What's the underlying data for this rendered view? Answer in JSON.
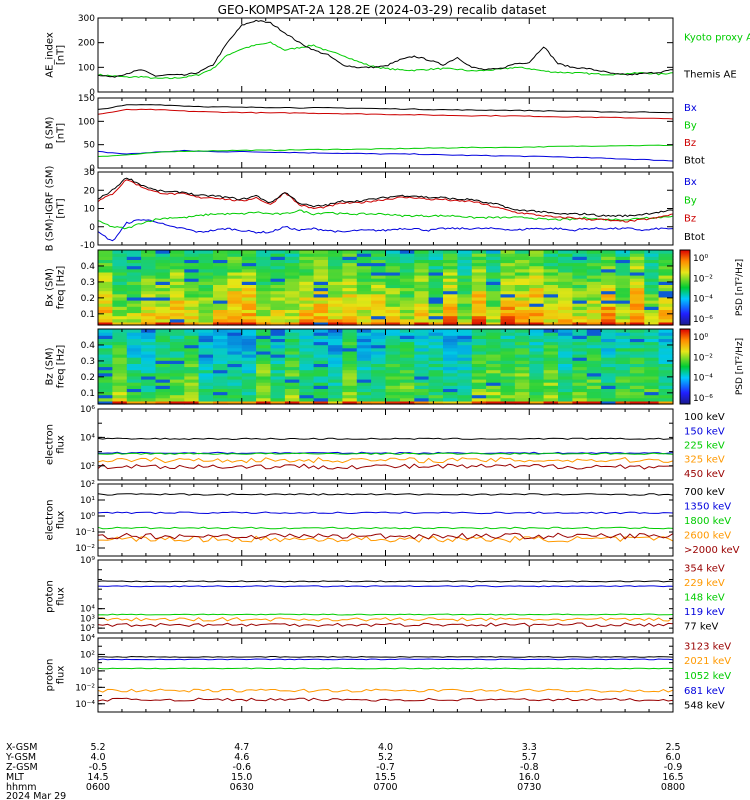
{
  "title": "GEO-KOMPSAT-2A 128.2E (2024-03-29) recalib dataset",
  "colors": {
    "black": "#000000",
    "blue": "#0000dd",
    "green": "#00cc00",
    "red": "#cc0000",
    "orange": "#ff9900",
    "darkred": "#990000"
  },
  "x_time_labels": [
    "0600",
    "0630",
    "0700",
    "0730",
    "0800"
  ],
  "bottom_table": {
    "row_labels": [
      "X-GSM",
      "Y-GSM",
      "Z-GSM",
      "MLT",
      "hhmm",
      "2024 Mar 29"
    ],
    "columns": [
      {
        "values": [
          "5.2",
          "4.0",
          "-0.5",
          "14.5",
          "0600"
        ]
      },
      {
        "values": [
          "4.7",
          "4.6",
          "-0.6",
          "15.0",
          "0630"
        ]
      },
      {
        "values": [
          "4.0",
          "5.2",
          "-0.7",
          "15.5",
          "0700"
        ]
      },
      {
        "values": [
          "3.3",
          "5.7",
          "-0.8",
          "16.0",
          "0730"
        ]
      },
      {
        "values": [
          "2.5",
          "6.0",
          "-0.9",
          "16.5",
          "0800"
        ]
      }
    ]
  },
  "chart_data": [
    {
      "id": "ae",
      "type": "line",
      "ylabel": [
        "AE_index",
        "[nT]"
      ],
      "ylim": [
        0,
        300
      ],
      "yticks": [
        {
          "v": 0,
          "label": "0"
        },
        {
          "v": 100,
          "label": "100"
        },
        {
          "v": 200,
          "label": "200"
        },
        {
          "v": 300,
          "label": "300"
        }
      ],
      "x_hours": [
        6.0,
        6.05,
        6.1,
        6.15,
        6.2,
        6.25,
        6.3,
        6.35,
        6.4,
        6.45,
        6.5,
        6.55,
        6.6,
        6.65,
        6.7,
        6.75,
        6.8,
        6.85,
        6.9,
        6.95,
        7.0,
        7.05,
        7.1,
        7.15,
        7.2,
        7.25,
        7.3,
        7.35,
        7.4,
        7.45,
        7.5,
        7.55,
        7.6,
        7.65,
        7.7,
        7.75,
        7.8,
        7.85,
        7.9,
        7.95,
        8.0
      ],
      "series": [
        {
          "name": "Kyoto proxy AE",
          "color": "green",
          "values": [
            70,
            65,
            60,
            62,
            55,
            55,
            60,
            70,
            95,
            150,
            175,
            190,
            200,
            170,
            180,
            190,
            165,
            150,
            125,
            105,
            95,
            90,
            88,
            92,
            95,
            92,
            85,
            88,
            92,
            100,
            95,
            85,
            80,
            78,
            75,
            72,
            72,
            75,
            78,
            72,
            78
          ]
        },
        {
          "name": "Themis AE",
          "color": "black",
          "values": [
            70,
            60,
            75,
            90,
            65,
            70,
            68,
            80,
            110,
            200,
            270,
            290,
            280,
            240,
            200,
            170,
            150,
            110,
            100,
            100,
            105,
            130,
            145,
            130,
            110,
            140,
            100,
            90,
            95,
            115,
            120,
            185,
            115,
            100,
            95,
            85,
            72,
            70,
            75,
            80,
            90
          ]
        }
      ]
    },
    {
      "id": "bsm",
      "type": "line",
      "ylabel": [
        "B (SM)",
        "[nT]"
      ],
      "ylim": [
        0,
        150
      ],
      "yticks": [
        {
          "v": 0,
          "label": "0"
        },
        {
          "v": 50,
          "label": "50"
        },
        {
          "v": 100,
          "label": "100"
        },
        {
          "v": 150,
          "label": "150"
        }
      ],
      "x_hours": [
        6.0,
        6.1,
        6.2,
        6.3,
        6.4,
        6.5,
        6.6,
        6.7,
        6.8,
        6.9,
        7.0,
        7.1,
        7.2,
        7.3,
        7.4,
        7.5,
        7.6,
        7.7,
        7.8,
        7.9,
        8.0
      ],
      "series": [
        {
          "name": "Bx",
          "color": "blue",
          "values": [
            35,
            30,
            34,
            37,
            35,
            35,
            34,
            33,
            32,
            31,
            30,
            30,
            28,
            27,
            26,
            25,
            24,
            22,
            20,
            18,
            15
          ]
        },
        {
          "name": "By",
          "color": "green",
          "values": [
            25,
            28,
            33,
            36,
            37,
            38,
            38,
            39,
            40,
            40,
            41,
            42,
            43,
            44,
            44,
            45,
            46,
            47,
            48,
            48,
            49
          ]
        },
        {
          "name": "Bz",
          "color": "red",
          "values": [
            115,
            125,
            125,
            122,
            120,
            119,
            118,
            118,
            117,
            116,
            115,
            114,
            113,
            112,
            112,
            111,
            110,
            109,
            108,
            107,
            105
          ]
        },
        {
          "name": "Btot",
          "color": "black",
          "values": [
            125,
            135,
            136,
            133,
            131,
            130,
            130,
            129,
            129,
            128,
            127,
            126,
            125,
            124,
            124,
            123,
            122,
            121,
            120,
            120,
            119
          ]
        }
      ]
    },
    {
      "id": "bdiff",
      "type": "line",
      "ylabel": [
        "B (SM)-IGRF (SM)",
        "[nT]"
      ],
      "ylim": [
        -10,
        30
      ],
      "yticks": [
        {
          "v": -10,
          "label": "-10"
        },
        {
          "v": 0,
          "label": "0"
        },
        {
          "v": 10,
          "label": "10"
        },
        {
          "v": 20,
          "label": "20"
        },
        {
          "v": 30,
          "label": "30"
        }
      ],
      "x_hours": [
        6.0,
        6.05,
        6.1,
        6.15,
        6.2,
        6.25,
        6.3,
        6.35,
        6.4,
        6.45,
        6.5,
        6.55,
        6.6,
        6.65,
        6.7,
        6.75,
        6.8,
        6.85,
        6.9,
        6.95,
        7.0,
        7.05,
        7.1,
        7.15,
        7.2,
        7.25,
        7.3,
        7.35,
        7.4,
        7.45,
        7.5,
        7.55,
        7.6,
        7.65,
        7.7,
        7.75,
        7.8,
        7.85,
        7.9,
        7.95,
        8.0
      ],
      "series": [
        {
          "name": "Bx",
          "color": "blue",
          "values": [
            -3,
            -8,
            2,
            4,
            3,
            0,
            -1,
            -3,
            -2,
            -1,
            -2,
            -3,
            -3,
            0,
            -2,
            -1,
            -2,
            -3,
            -2,
            -2,
            -2,
            -1,
            -1,
            -2,
            -1,
            -1,
            -1,
            -1,
            -1,
            -2,
            -1,
            -1,
            -1,
            -2,
            -1,
            -1,
            -1,
            -1,
            -2,
            -1,
            -1
          ]
        },
        {
          "name": "By",
          "color": "green",
          "values": [
            3,
            0,
            -1,
            2,
            4,
            5,
            5,
            6,
            7,
            7,
            7,
            8,
            7,
            7,
            9,
            7,
            8,
            7,
            7,
            7,
            7,
            6,
            6,
            6,
            6,
            6,
            5,
            5,
            5,
            5,
            5,
            4,
            4,
            4,
            5,
            4,
            4,
            4,
            5,
            5,
            6
          ]
        },
        {
          "name": "Bz",
          "color": "red",
          "values": [
            14,
            18,
            26,
            22,
            19,
            18,
            18,
            16,
            16,
            15,
            14,
            16,
            12,
            19,
            12,
            10,
            11,
            13,
            13,
            14,
            15,
            16,
            16,
            15,
            15,
            14,
            14,
            12,
            10,
            8,
            7,
            6,
            5,
            5,
            4,
            4,
            3,
            3,
            4,
            5,
            7
          ]
        },
        {
          "name": "Btot",
          "color": "black",
          "values": [
            15,
            20,
            27,
            23,
            20,
            19,
            19,
            17,
            17,
            16,
            15,
            17,
            13,
            19,
            13,
            11,
            12,
            14,
            14,
            15,
            16,
            17,
            17,
            16,
            16,
            15,
            15,
            13,
            12,
            9,
            9,
            8,
            7,
            7,
            7,
            6,
            6,
            6,
            7,
            8,
            9
          ]
        }
      ]
    },
    {
      "id": "bxspec",
      "type": "heatmap",
      "ylabel": [
        "Bx (SM)",
        "freq [Hz]"
      ],
      "ylim": [
        0.03,
        0.5
      ],
      "yticks": [
        {
          "v": 0.1,
          "label": "0.1"
        },
        {
          "v": 0.2,
          "label": "0.2"
        },
        {
          "v": 0.3,
          "label": "0.3"
        },
        {
          "v": 0.4,
          "label": "0.4"
        }
      ],
      "colorbar": {
        "label": "PSD [nT²/Hz]",
        "ticks": [
          "10⁰",
          "10⁻²",
          "10⁻⁴",
          "10⁻⁶"
        ]
      }
    },
    {
      "id": "bzspec",
      "type": "heatmap",
      "ylabel": [
        "Bz (SM)",
        "freq [Hz]"
      ],
      "ylim": [
        0.03,
        0.5
      ],
      "yticks": [
        {
          "v": 0.1,
          "label": "0.1"
        },
        {
          "v": 0.2,
          "label": "0.2"
        },
        {
          "v": 0.3,
          "label": "0.3"
        },
        {
          "v": 0.4,
          "label": "0.4"
        }
      ],
      "colorbar": {
        "label": "PSD [nT²/Hz]",
        "ticks": [
          "10⁰",
          "10⁻²",
          "10⁻⁴",
          "10⁻⁶"
        ]
      }
    },
    {
      "id": "elow",
      "type": "line",
      "log": true,
      "ylabel": [
        "electron",
        "flux"
      ],
      "ylim_exp": [
        1,
        6
      ],
      "yticks": [
        {
          "e": 2,
          "label": "10²"
        },
        {
          "e": 4,
          "label": "10⁴"
        },
        {
          "e": 6,
          "label": "10⁶"
        }
      ],
      "series": [
        {
          "name": "100 keV",
          "color": "black",
          "level": 3.9
        },
        {
          "name": "150 keV",
          "color": "blue",
          "level": 2.9
        },
        {
          "name": "225 keV",
          "color": "green",
          "level": 2.85
        },
        {
          "name": "325 keV",
          "color": "orange",
          "level": 2.4
        },
        {
          "name": "450 keV",
          "color": "darkred",
          "level": 1.95
        }
      ]
    },
    {
      "id": "ehigh",
      "type": "line",
      "log": true,
      "ylabel": [
        "electron",
        "flux"
      ],
      "ylim_exp": [
        -2.5,
        2
      ],
      "yticks": [
        {
          "e": -2,
          "label": "10⁻²"
        },
        {
          "e": -1,
          "label": "10⁻¹"
        },
        {
          "e": 0,
          "label": "10⁰"
        },
        {
          "e": 1,
          "label": "10¹"
        },
        {
          "e": 2,
          "label": "10²"
        }
      ],
      "series": [
        {
          "name": "700 keV",
          "color": "black",
          "level": 1.35
        },
        {
          "name": "1350 keV",
          "color": "blue",
          "level": 0.2
        },
        {
          "name": "1800 keV",
          "color": "green",
          "level": -0.75
        },
        {
          "name": "2600 keV",
          "color": "orange",
          "level": -1.45
        },
        {
          "name": ">2000 keV",
          "color": "darkred",
          "level": -1.25
        }
      ]
    },
    {
      "id": "plow",
      "type": "line",
      "log": true,
      "ylabel": [
        "proton",
        "flux"
      ],
      "ylim_exp": [
        1.5,
        9
      ],
      "yticks": [
        {
          "e": 2,
          "label": "10²"
        },
        {
          "e": 3,
          "label": "10³"
        },
        {
          "e": 4,
          "label": "10⁴"
        },
        {
          "e": 9,
          "label": "10⁹"
        }
      ],
      "series": [
        {
          "name": "354 keV",
          "color": "darkred",
          "level": 2.35
        },
        {
          "name": "229 keV",
          "color": "orange",
          "level": 2.9
        },
        {
          "name": "148 keV",
          "color": "green",
          "level": 3.4
        },
        {
          "name": "119 keV",
          "color": "blue",
          "level": 6.3
        },
        {
          "name": "77 keV",
          "color": "black",
          "level": 6.8
        }
      ]
    },
    {
      "id": "phigh",
      "type": "line",
      "log": true,
      "ylabel": [
        "proton",
        "flux"
      ],
      "ylim_exp": [
        -5,
        4
      ],
      "yticks": [
        {
          "e": -4,
          "label": "10⁻⁴"
        },
        {
          "e": -2,
          "label": "10⁻²"
        },
        {
          "e": 0,
          "label": "10⁰"
        },
        {
          "e": 2,
          "label": "10²"
        },
        {
          "e": 4,
          "label": "10⁴"
        }
      ],
      "series": [
        {
          "name": "3123 keV",
          "color": "darkred",
          "level": -3.5
        },
        {
          "name": "2021 keV",
          "color": "orange",
          "level": -2.4
        },
        {
          "name": "1052 keV",
          "color": "green",
          "level": 0.3
        },
        {
          "name": "681 keV",
          "color": "blue",
          "level": 1.4
        },
        {
          "name": "548 keV",
          "color": "black",
          "level": 1.7
        }
      ]
    }
  ]
}
